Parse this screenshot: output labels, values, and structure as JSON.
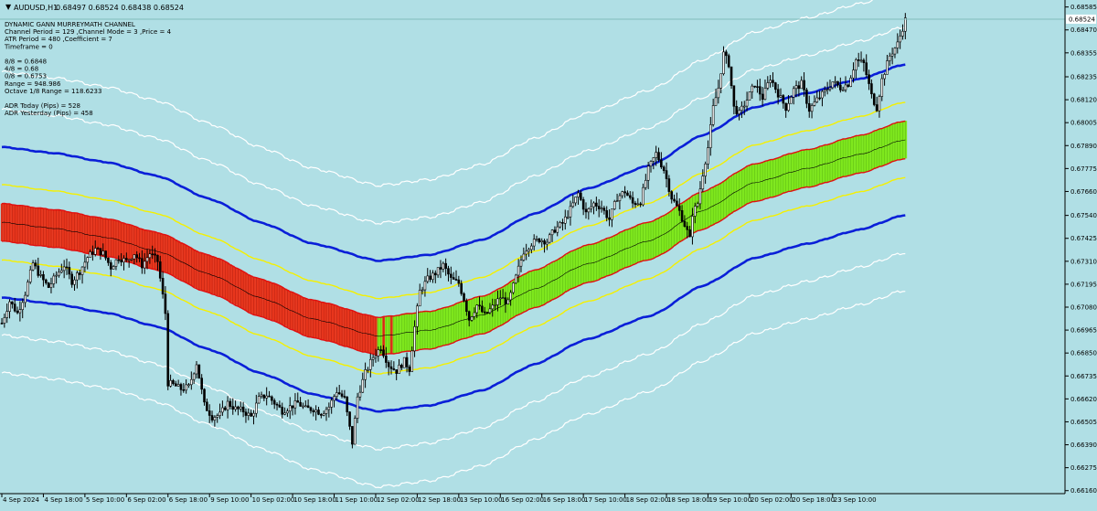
{
  "header": {
    "symbol": "AUDUSD,H1",
    "ohlc": "0.68497 0.68524 0.68438 0.68524"
  },
  "indicator_info": [
    "DYNAMIC GANN MURREYMATH CHANNEL",
    "Channel Period = 129  ,Channel Mode = 3  ,Price = 4",
    "ATR Period = 480  ,Coefficient = 7",
    "Timeframe = 0",
    "",
    "8/8 = 0.6848",
    "4/8 = 0.68",
    "0/8 = 0.6753",
    "Range  = 948.986",
    "Octave 1/8 Range = 118.6233",
    "",
    "ADR Today (Pips) = 528",
    "ADR Yesterday (Pips) = 458"
  ],
  "colors": {
    "background": "#b0dfe5",
    "outer_band": "#ffffff",
    "blue_band": "#0a1fd8",
    "yellow_band": "#f5f000",
    "red_band": "#e01010",
    "bear_fill": "#e8361d",
    "bull_fill": "#7fe81d",
    "candle": "#000000",
    "price_box": "#ffffff"
  },
  "chart_data": {
    "type": "candlestick",
    "symbol": "AUDUSD",
    "timeframe": "H1",
    "current_price": 0.68524,
    "ylim": [
      0.66145,
      0.6862
    ],
    "y_ticks": [
      0.68585,
      0.6847,
      0.68355,
      0.68235,
      0.6812,
      0.68005,
      0.6789,
      0.67775,
      0.6766,
      0.6754,
      0.67425,
      0.6731,
      0.67195,
      0.6708,
      0.66965,
      0.6685,
      0.66735,
      0.6662,
      0.66505,
      0.6639,
      0.66275,
      0.6616
    ],
    "x_labels": [
      "4 Sep 2024",
      "4 Sep 18:00",
      "5 Sep 10:00",
      "6 Sep 02:00",
      "6 Sep 18:00",
      "9 Sep 10:00",
      "10 Sep 02:00",
      "10 Sep 18:00",
      "11 Sep 10:00",
      "12 Sep 02:00",
      "12 Sep 18:00",
      "13 Sep 10:00",
      "16 Sep 02:00",
      "16 Sep 18:00",
      "17 Sep 10:00",
      "18 Sep 02:00",
      "18 Sep 18:00",
      "19 Sep 10:00",
      "20 Sep 02:00",
      "20 Sep 18:00",
      "23 Sep 10:00"
    ],
    "x_label_positions": [
      0,
      16,
      32,
      48,
      64,
      80,
      96,
      112,
      128,
      144,
      160,
      176,
      192,
      208,
      224,
      240,
      256,
      272,
      288,
      304,
      320
    ],
    "price_path": [
      [
        0,
        0.67
      ],
      [
        3,
        0.6711
      ],
      [
        6,
        0.6705
      ],
      [
        9,
        0.6715
      ],
      [
        12,
        0.673
      ],
      [
        15,
        0.6723
      ],
      [
        18,
        0.6718
      ],
      [
        21,
        0.6724
      ],
      [
        24,
        0.6729
      ],
      [
        27,
        0.6721
      ],
      [
        30,
        0.6726
      ],
      [
        33,
        0.6733
      ],
      [
        36,
        0.6737
      ],
      [
        39,
        0.6735
      ],
      [
        42,
        0.6728
      ],
      [
        45,
        0.6733
      ],
      [
        48,
        0.6731
      ],
      [
        51,
        0.6735
      ],
      [
        54,
        0.6729
      ],
      [
        57,
        0.6735
      ],
      [
        60,
        0.6731
      ],
      [
        63,
        0.6705
      ],
      [
        64,
        0.667
      ],
      [
        66,
        0.6669
      ],
      [
        69,
        0.6667
      ],
      [
        72,
        0.6668
      ],
      [
        75,
        0.668
      ],
      [
        78,
        0.6659
      ],
      [
        81,
        0.6653
      ],
      [
        84,
        0.6654
      ],
      [
        87,
        0.666
      ],
      [
        90,
        0.6657
      ],
      [
        93,
        0.6656
      ],
      [
        96,
        0.6653
      ],
      [
        99,
        0.6662
      ],
      [
        102,
        0.6664
      ],
      [
        105,
        0.666
      ],
      [
        108,
        0.6656
      ],
      [
        111,
        0.6658
      ],
      [
        114,
        0.666
      ],
      [
        117,
        0.6657
      ],
      [
        120,
        0.6657
      ],
      [
        123,
        0.6655
      ],
      [
        126,
        0.6658
      ],
      [
        129,
        0.6666
      ],
      [
        132,
        0.6662
      ],
      [
        135,
        0.664
      ],
      [
        137,
        0.6663
      ],
      [
        140,
        0.6675
      ],
      [
        143,
        0.6683
      ],
      [
        146,
        0.6688
      ],
      [
        149,
        0.6679
      ],
      [
        152,
        0.6676
      ],
      [
        155,
        0.6681
      ],
      [
        157,
        0.6677
      ],
      [
        159,
        0.6698
      ],
      [
        161,
        0.6716
      ],
      [
        164,
        0.6722
      ],
      [
        167,
        0.6725
      ],
      [
        170,
        0.6729
      ],
      [
        173,
        0.6722
      ],
      [
        176,
        0.672
      ],
      [
        178,
        0.6712
      ],
      [
        180,
        0.6702
      ],
      [
        183,
        0.6709
      ],
      [
        186,
        0.6704
      ],
      [
        189,
        0.6708
      ],
      [
        192,
        0.6713
      ],
      [
        195,
        0.671
      ],
      [
        198,
        0.6723
      ],
      [
        201,
        0.6736
      ],
      [
        204,
        0.674
      ],
      [
        207,
        0.6742
      ],
      [
        210,
        0.6741
      ],
      [
        213,
        0.6747
      ],
      [
        216,
        0.675
      ],
      [
        219,
        0.6757
      ],
      [
        222,
        0.6765
      ],
      [
        225,
        0.6755
      ],
      [
        228,
        0.676
      ],
      [
        231,
        0.6758
      ],
      [
        234,
        0.6752
      ],
      [
        237,
        0.6763
      ],
      [
        240,
        0.6766
      ],
      [
        243,
        0.676
      ],
      [
        246,
        0.6761
      ],
      [
        249,
        0.6777
      ],
      [
        252,
        0.6785
      ],
      [
        255,
        0.6777
      ],
      [
        258,
        0.6763
      ],
      [
        261,
        0.6756
      ],
      [
        264,
        0.6746
      ],
      [
        265,
        0.6742
      ],
      [
        266,
        0.6755
      ],
      [
        268,
        0.676
      ],
      [
        270,
        0.6775
      ],
      [
        272,
        0.6788
      ],
      [
        274,
        0.6808
      ],
      [
        276,
        0.6818
      ],
      [
        278,
        0.6835
      ],
      [
        280,
        0.683
      ],
      [
        282,
        0.6808
      ],
      [
        284,
        0.6805
      ],
      [
        287,
        0.6812
      ],
      [
        290,
        0.682
      ],
      [
        293,
        0.6813
      ],
      [
        296,
        0.6823
      ],
      [
        299,
        0.6815
      ],
      [
        302,
        0.6808
      ],
      [
        305,
        0.6817
      ],
      [
        308,
        0.682
      ],
      [
        311,
        0.6807
      ],
      [
        314,
        0.6812
      ],
      [
        317,
        0.6816
      ],
      [
        320,
        0.6821
      ],
      [
        323,
        0.6818
      ],
      [
        326,
        0.682
      ],
      [
        329,
        0.6832
      ],
      [
        332,
        0.683
      ],
      [
        335,
        0.6814
      ],
      [
        337,
        0.6808
      ],
      [
        339,
        0.6822
      ],
      [
        342,
        0.6834
      ],
      [
        345,
        0.684
      ],
      [
        348,
        0.6852
      ]
    ],
    "channel": {
      "type": "dynamic-gann-murreymath",
      "anchor_x": [
        0,
        20,
        40,
        60,
        80,
        100,
        120,
        145,
        165,
        185,
        205,
        225,
        250,
        270,
        290,
        310,
        330,
        348
      ],
      "mid": [
        0.67505,
        0.67475,
        0.6743,
        0.6736,
        0.67245,
        0.67125,
        0.6702,
        0.66935,
        0.66965,
        0.6704,
        0.6717,
        0.67295,
        0.67415,
        0.67565,
        0.67705,
        0.67775,
        0.67845,
        0.6792
      ],
      "lines": [
        {
          "offset": -4,
          "color": "#ffffff",
          "style": "outer"
        },
        {
          "offset": -3,
          "color": "#ffffff",
          "style": "outer"
        },
        {
          "offset": -2,
          "color": "#0a1fd8",
          "style": "main"
        },
        {
          "offset": -1,
          "color": "#f5f000",
          "style": "inner"
        },
        {
          "offset": -0.5,
          "color": "#e01010",
          "style": "inner"
        },
        {
          "offset": 0,
          "color": "#000000",
          "style": "center"
        },
        {
          "offset": 0.5,
          "color": "#e01010",
          "style": "inner"
        },
        {
          "offset": 1,
          "color": "#f5f000",
          "style": "inner"
        },
        {
          "offset": 2,
          "color": "#0a1fd8",
          "style": "main"
        },
        {
          "offset": 3,
          "color": "#ffffff",
          "style": "outer"
        },
        {
          "offset": 4,
          "color": "#ffffff",
          "style": "outer"
        }
      ],
      "octave_unit": 0.00118,
      "fill_band_offset": 0.5,
      "bear_until": 152,
      "bull_from": 145
    }
  }
}
